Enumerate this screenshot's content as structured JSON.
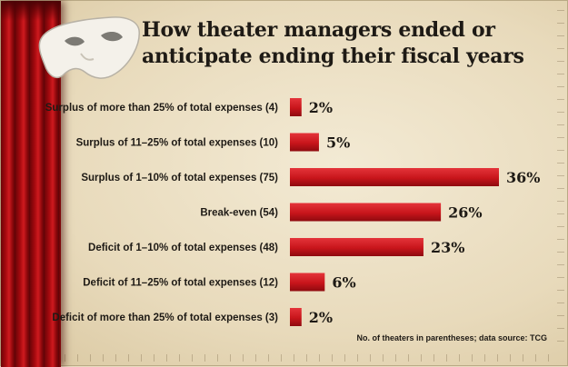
{
  "chart_data": {
    "type": "bar",
    "orientation": "horizontal",
    "title": "How theater managers ended or anticipate ending their fiscal years",
    "title_lines": [
      "How theater managers ended or",
      "anticipate ending their fiscal years"
    ],
    "categories": [
      "Surplus of more than 25% of total expenses (4)",
      "Surplus of 11–25% of total expenses (10)",
      "Surplus of  1–10% of total expenses (75)",
      "Break-even (54)",
      "Deficit of 1–10% of total expenses (48)",
      "Deficit of 11–25% of total expenses (12)",
      "Deficit of more than 25% of total expenses (3)"
    ],
    "values": [
      2,
      5,
      36,
      26,
      23,
      6,
      2
    ],
    "value_labels": [
      "2%",
      "5%",
      "36%",
      "26%",
      "23%",
      "6%",
      "2%"
    ],
    "unit": "%",
    "xlim": [
      0,
      36
    ],
    "grid": false,
    "bar_color": "#c8151b",
    "footnote": "No. of theaters in parentheses; data source: TCG"
  }
}
